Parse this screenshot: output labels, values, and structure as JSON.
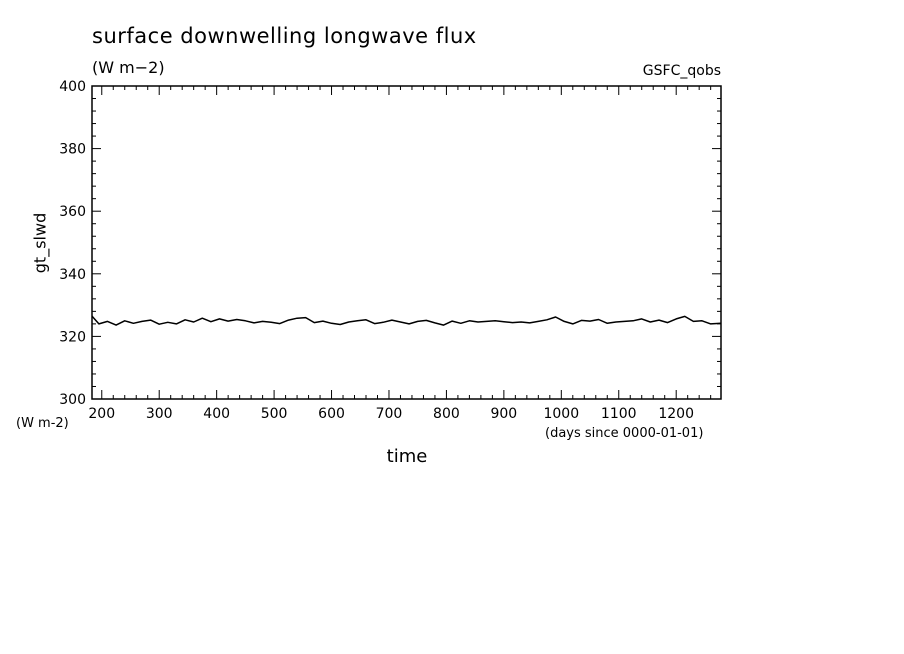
{
  "chart_data": {
    "type": "line",
    "title": "surface downwelling longwave flux",
    "subtitle": "(W m−2)",
    "source_label": "GSFC_qobs",
    "ylabel": "gt_slwd",
    "y_units": "(W m-2)",
    "xlabel": "time",
    "x_units": "(days since 0000-01-01)",
    "xlim": [
      183,
      1278
    ],
    "ylim": [
      300,
      400
    ],
    "x_ticks": [
      200,
      300,
      400,
      500,
      600,
      700,
      800,
      900,
      1000,
      1100,
      1200
    ],
    "y_ticks": [
      300,
      320,
      340,
      360,
      380,
      400
    ],
    "grid": false,
    "series": [
      {
        "x": [
          183,
          195,
          210,
          225,
          240,
          255,
          270,
          285,
          300,
          315,
          330,
          345,
          360,
          375,
          390,
          405,
          420,
          435,
          450,
          465,
          480,
          495,
          510,
          525,
          540,
          555,
          570,
          585,
          600,
          615,
          630,
          645,
          660,
          675,
          690,
          705,
          720,
          735,
          750,
          765,
          780,
          795,
          810,
          825,
          840,
          855,
          870,
          885,
          900,
          915,
          930,
          945,
          960,
          975,
          990,
          1005,
          1020,
          1035,
          1050,
          1065,
          1080,
          1095,
          1110,
          1125,
          1140,
          1155,
          1170,
          1185,
          1200,
          1215,
          1230,
          1245,
          1260,
          1278
        ],
        "y": [
          326.5,
          324.0,
          324.8,
          323.6,
          325.0,
          324.2,
          324.8,
          325.2,
          323.9,
          324.5,
          324.0,
          325.3,
          324.6,
          325.8,
          324.7,
          325.6,
          324.9,
          325.4,
          325.0,
          324.3,
          324.8,
          324.5,
          324.1,
          325.2,
          325.8,
          326.0,
          324.4,
          324.9,
          324.2,
          323.8,
          324.6,
          325.0,
          325.3,
          324.1,
          324.5,
          325.2,
          324.6,
          324.0,
          324.8,
          325.1,
          324.3,
          323.6,
          324.9,
          324.2,
          325.0,
          324.6,
          324.8,
          325.0,
          324.7,
          324.4,
          324.6,
          324.3,
          324.8,
          325.3,
          326.2,
          324.8,
          324.0,
          325.1,
          324.9,
          325.4,
          324.2,
          324.6,
          324.8,
          325.0,
          325.6,
          324.6,
          325.2,
          324.4,
          325.6,
          326.4,
          324.8,
          325.0,
          324.0,
          324.2
        ]
      }
    ]
  }
}
